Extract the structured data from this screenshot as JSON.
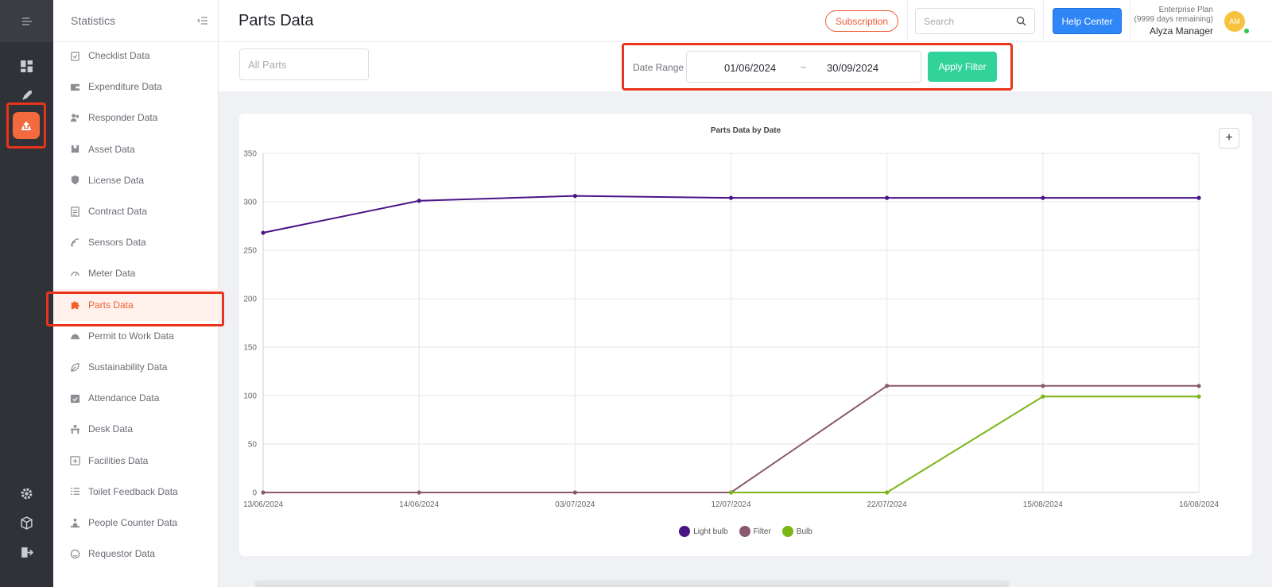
{
  "sidebar": {
    "title": "Statistics",
    "items": [
      {
        "label": "Checklist Data",
        "icon": "checklist-icon"
      },
      {
        "label": "Expenditure Data",
        "icon": "wallet-icon"
      },
      {
        "label": "Responder Data",
        "icon": "users-icon"
      },
      {
        "label": "Asset Data",
        "icon": "box-icon"
      },
      {
        "label": "License Data",
        "icon": "shield-icon"
      },
      {
        "label": "Contract Data",
        "icon": "document-icon"
      },
      {
        "label": "Sensors Data",
        "icon": "signal-icon"
      },
      {
        "label": "Meter Data",
        "icon": "gauge-icon"
      },
      {
        "label": "Parts Data",
        "icon": "puzzle-icon",
        "active": true
      },
      {
        "label": "Permit to Work Data",
        "icon": "helmet-icon"
      },
      {
        "label": "Sustainability Data",
        "icon": "leaf-icon"
      },
      {
        "label": "Attendance Data",
        "icon": "calendar-check-icon"
      },
      {
        "label": "Desk Data",
        "icon": "desk-icon"
      },
      {
        "label": "Facilities Data",
        "icon": "calendar-plus-icon"
      },
      {
        "label": "Toilet Feedback Data",
        "icon": "list-icon"
      },
      {
        "label": "People Counter Data",
        "icon": "person-icon"
      },
      {
        "label": "Requestor Data",
        "icon": "smile-icon"
      }
    ]
  },
  "header": {
    "title": "Parts Data",
    "subscription_label": "Subscription",
    "search_placeholder": "Search",
    "help_label": "Help Center",
    "plan_name": "Enterprise Plan",
    "plan_days": "(9999 days remaining)",
    "user_name": "Alyza Manager",
    "avatar_initials": "AM"
  },
  "filters": {
    "parts_placeholder": "All Parts",
    "date_range_label": "Date Range",
    "date_start": "01/06/2024",
    "date_separator": "~",
    "date_end": "30/09/2024",
    "apply_label": "Apply Filter"
  },
  "chart_data": {
    "type": "line",
    "title": "Parts Data by Date",
    "x": [
      "13/06/2024",
      "14/06/2024",
      "03/07/2024",
      "12/07/2024",
      "22/07/2024",
      "15/08/2024",
      "16/08/2024"
    ],
    "ylim": [
      0,
      350
    ],
    "yticks": [
      0,
      50,
      100,
      150,
      200,
      250,
      300,
      350
    ],
    "grid": true,
    "legend_position": "bottom",
    "series": [
      {
        "name": "Light bulb",
        "color": "#4a1486",
        "values": [
          268,
          301,
          306,
          304,
          304,
          304,
          304
        ]
      },
      {
        "name": "Filter",
        "color": "#8c5a6e",
        "values": [
          0,
          0,
          0,
          0,
          110,
          110,
          110
        ]
      },
      {
        "name": "Bulb",
        "color": "#7cb518",
        "values": [
          null,
          null,
          null,
          0,
          0,
          99,
          99
        ]
      }
    ]
  },
  "colors": {
    "accent": "#f26a3d",
    "highlight_outline": "#e8341c",
    "help_button": "#2f86f6",
    "apply_button": "#32d39a"
  }
}
